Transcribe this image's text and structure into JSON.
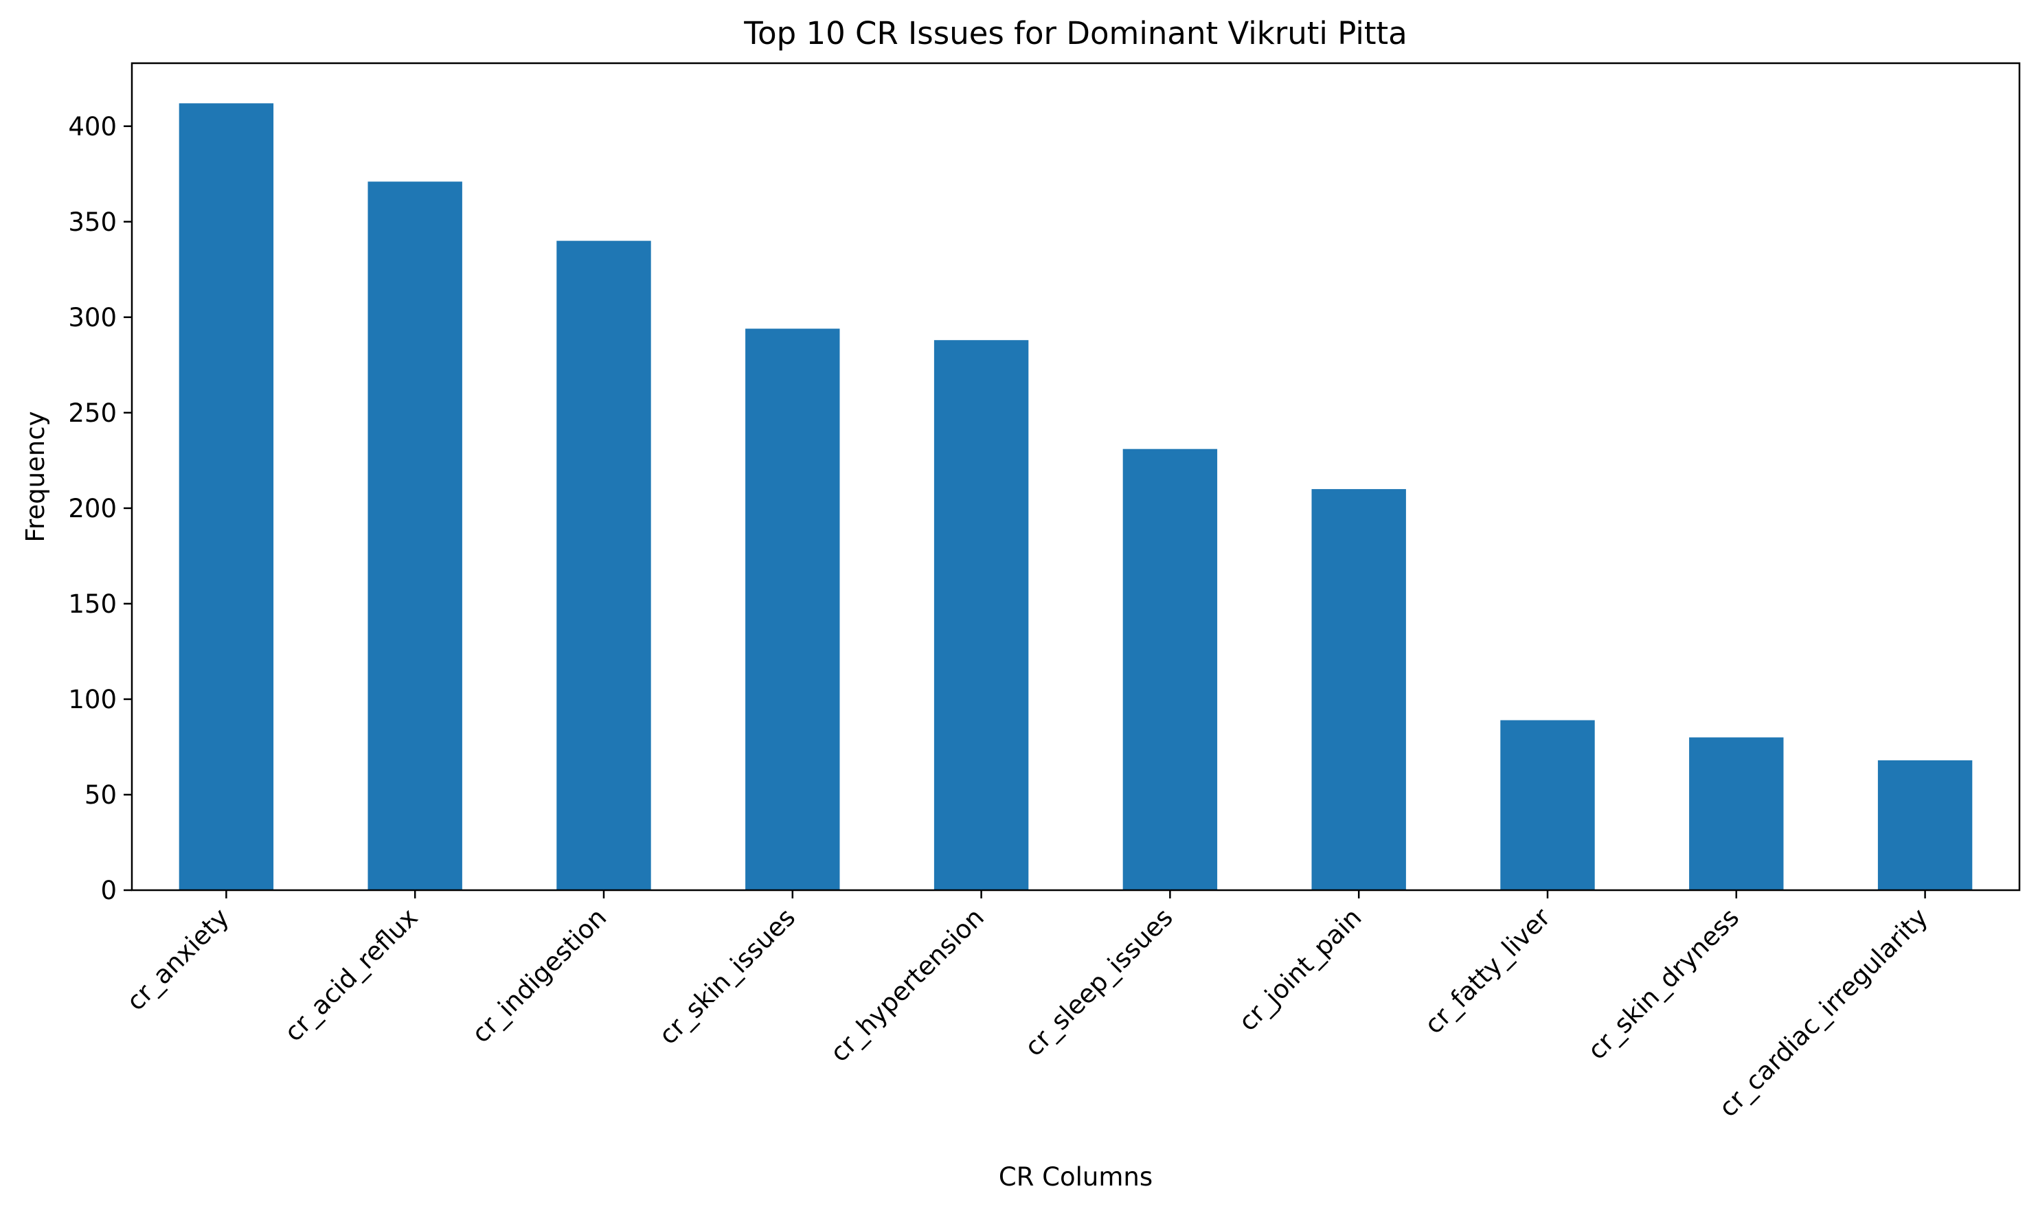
{
  "chart_data": {
    "type": "bar",
    "title": "Top 10 CR Issues for Dominant Vikruti Pitta",
    "xlabel": "CR Columns",
    "ylabel": "Frequency",
    "categories": [
      "cr_anxiety",
      "cr_acid_reflux",
      "cr_indigestion",
      "cr_skin_issues",
      "cr_hypertension",
      "cr_sleep_issues",
      "cr_joint_pain",
      "cr_fatty_liver",
      "cr_skin_dryness",
      "cr_cardiac_irregularity"
    ],
    "values": [
      412,
      371,
      340,
      294,
      288,
      231,
      210,
      89,
      80,
      68
    ],
    "ylim": [
      0,
      433
    ],
    "yticks": [
      0,
      50,
      100,
      150,
      200,
      250,
      300,
      350,
      400
    ],
    "bar_color": "#1f77b4",
    "grid": false,
    "legend": "none"
  }
}
